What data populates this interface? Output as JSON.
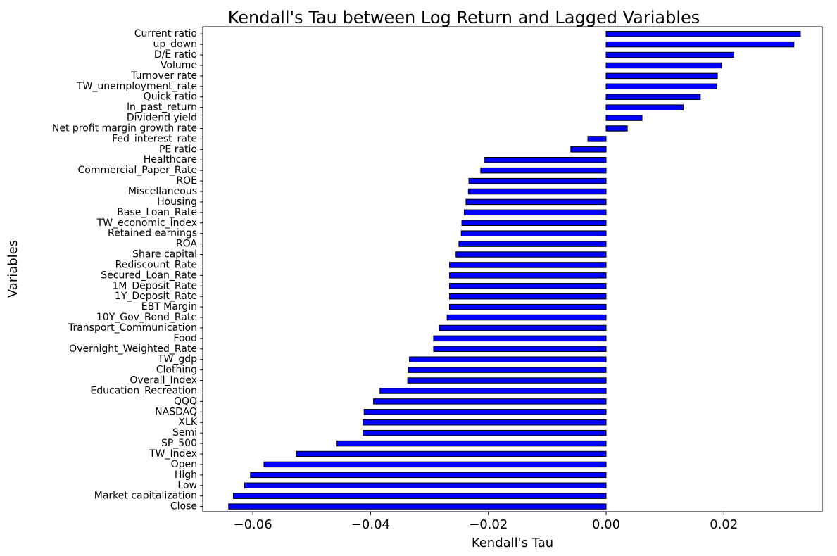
{
  "chart_data": {
    "type": "bar",
    "orientation": "horizontal",
    "title": "Kendall's Tau between Log Return and Lagged Variables",
    "xlabel": "Kendall's Tau",
    "ylabel": "Variables",
    "xlim": [
      -0.0685,
      0.0367
    ],
    "xticks": [
      -0.06,
      -0.04,
      -0.02,
      0.0,
      0.02
    ],
    "xtick_labels": [
      "−0.06",
      "−0.04",
      "−0.02",
      "0.00",
      "0.02"
    ],
    "grid": false,
    "legend": "none",
    "bar_color": "#0000ff",
    "bar_edge_color": "#000000",
    "categories": [
      "Current ratio",
      "up_down",
      "D/E ratio",
      "Volume",
      "Turnover rate",
      "TW_unemployment_rate",
      "Quick ratio",
      "ln_past_return",
      "Dividend yield",
      "Net profit margin growth rate",
      "Fed_interest_rate",
      "PE ratio",
      "Healthcare",
      "Commercial_Paper_Rate",
      "ROE",
      "Miscellaneous",
      "Housing",
      "Base_Loan_Rate",
      "TW_economic_index",
      "Retained earnings",
      "ROA",
      "Share capital",
      "Rediscount_Rate",
      "Secured_Loan_Rate",
      "1M_Deposit_Rate",
      "1Y_Deposit_Rate",
      "EBT Margin",
      "10Y_Gov_Bond_Rate",
      "Transport_Communication",
      "Food",
      "Overnight_Weighted_Rate",
      "TW_gdp",
      "Clothing",
      "Overall_Index",
      "Education_Recreation",
      "QQQ",
      "NASDAQ",
      "XLK",
      "Semi",
      "SP_500",
      "TW_Index",
      "Open",
      "High",
      "Low",
      "Market capitalization",
      "Close"
    ],
    "values": [
      0.033,
      0.0319,
      0.0217,
      0.0196,
      0.0189,
      0.0188,
      0.016,
      0.0131,
      0.0061,
      0.0036,
      -0.0031,
      -0.006,
      -0.0206,
      -0.0213,
      -0.0233,
      -0.0234,
      -0.0238,
      -0.0241,
      -0.0245,
      -0.0246,
      -0.025,
      -0.0255,
      -0.0266,
      -0.0266,
      -0.0266,
      -0.0266,
      -0.0266,
      -0.027,
      -0.0283,
      -0.0293,
      -0.0293,
      -0.0334,
      -0.0336,
      -0.0337,
      -0.0384,
      -0.0395,
      -0.0411,
      -0.0413,
      -0.0413,
      -0.0457,
      -0.0526,
      -0.0581,
      -0.0604,
      -0.0614,
      -0.0633,
      -0.0641
    ]
  }
}
